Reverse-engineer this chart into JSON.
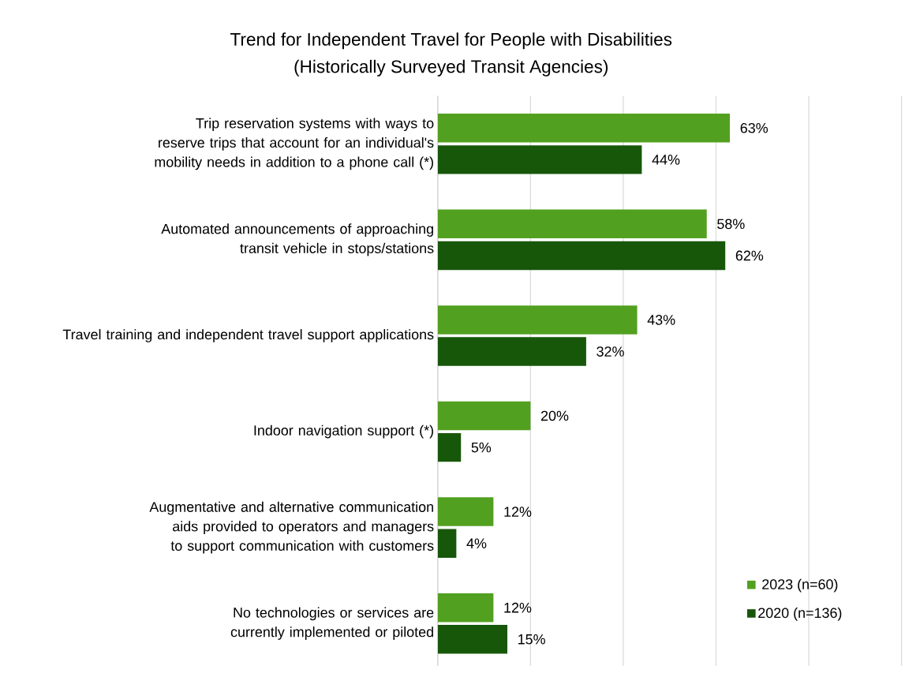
{
  "chart_data": {
    "type": "bar",
    "orientation": "horizontal",
    "title": "Trend for Independent Travel for People with Disabilities",
    "subtitle": "(Historically Surveyed Transit Agencies)",
    "categories": [
      "Trip reservation systems with ways to reserve trips that account for an individual's mobility needs in addition to a phone call (*)",
      "Automated announcements of approaching transit vehicle in stops/stations",
      "Travel training and independent travel support applications",
      "Indoor navigation support (*)",
      "Augmentative and alternative communication aids provided to operators and managers to support communication with customers",
      "No technologies or services are currently implemented or piloted"
    ],
    "series": [
      {
        "name": "2023 (n=60)",
        "color": "#52a020",
        "values": [
          63,
          58,
          43,
          20,
          12,
          12
        ],
        "value_labels": [
          "63%",
          "58%",
          "43%",
          "20%",
          "12%",
          "12%"
        ]
      },
      {
        "name": "2020 (n=136)",
        "color": "#17570a",
        "values": [
          44,
          62,
          32,
          5,
          4,
          15
        ],
        "value_labels": [
          "44%",
          "62%",
          "32%",
          "5%",
          "4%",
          "15%"
        ]
      }
    ],
    "xlim": [
      0,
      100
    ],
    "xticks": [
      {
        "value": 0,
        "label": null
      },
      {
        "value": 20,
        "label": null
      },
      {
        "value": 40,
        "label": null
      },
      {
        "value": 60,
        "label": null
      },
      {
        "value": 80,
        "label": null
      },
      {
        "value": 100,
        "label": null
      }
    ],
    "grid": "x",
    "legend": "bottom right",
    "tick_labels": "y"
  }
}
